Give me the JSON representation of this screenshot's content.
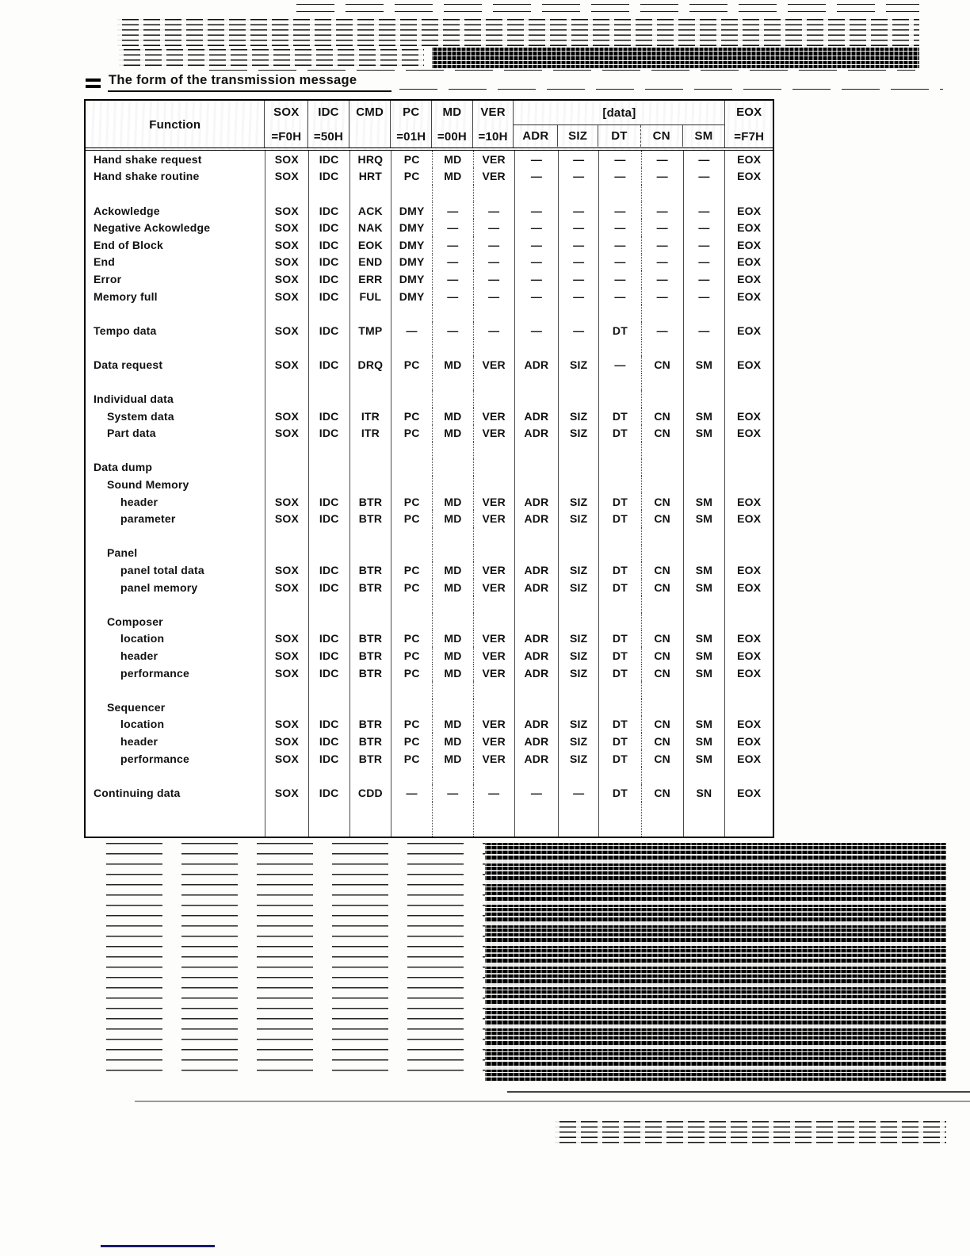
{
  "page": {
    "title": "The form of the transmission message",
    "icons": {
      "section_marker": "triple-bar"
    },
    "colors": {
      "text": "#111111",
      "table_border": "#000000",
      "navy_rule": "#1b1a6e"
    }
  },
  "table": {
    "header": {
      "function": "Function",
      "sox": {
        "line1": "SOX",
        "line2": "=F0H"
      },
      "idc": {
        "line1": "IDC",
        "line2": "=50H"
      },
      "cmd": {
        "line1": "CMD",
        "line2": ""
      },
      "pc": {
        "line1": "PC",
        "line2": "=01H"
      },
      "md": {
        "line1": "MD",
        "line2": "=00H"
      },
      "ver": {
        "line1": "VER",
        "line2": "=10H"
      },
      "data_group": {
        "label": "[data]",
        "columns": [
          "ADR",
          "SIZ",
          "DT",
          "CN",
          "SM"
        ]
      },
      "eox": {
        "line1": "EOX",
        "line2": "=F7H"
      }
    },
    "rows": [
      {
        "label": "Hand shake request",
        "indent": 0,
        "cells": [
          "SOX",
          "IDC",
          "HRQ",
          "PC",
          "MD",
          "VER",
          "—",
          "—",
          "—",
          "—",
          "—",
          "EOX"
        ]
      },
      {
        "label": "Hand shake routine",
        "indent": 0,
        "cells": [
          "SOX",
          "IDC",
          "HRT",
          "PC",
          "MD",
          "VER",
          "—",
          "—",
          "—",
          "—",
          "—",
          "EOX"
        ]
      },
      {
        "label": "",
        "indent": 0,
        "cells": [
          "",
          "",
          "",
          "",
          "",
          "",
          "",
          "",
          "",
          "",
          "",
          ""
        ]
      },
      {
        "label": "Ackowledge",
        "indent": 0,
        "cells": [
          "SOX",
          "IDC",
          "ACK",
          "DMY",
          "—",
          "—",
          "—",
          "—",
          "—",
          "—",
          "—",
          "EOX"
        ]
      },
      {
        "label": "Negative Ackowledge",
        "indent": 0,
        "cells": [
          "SOX",
          "IDC",
          "NAK",
          "DMY",
          "—",
          "—",
          "—",
          "—",
          "—",
          "—",
          "—",
          "EOX"
        ]
      },
      {
        "label": "End of Block",
        "indent": 0,
        "cells": [
          "SOX",
          "IDC",
          "EOK",
          "DMY",
          "—",
          "—",
          "—",
          "—",
          "—",
          "—",
          "—",
          "EOX"
        ]
      },
      {
        "label": "End",
        "indent": 0,
        "cells": [
          "SOX",
          "IDC",
          "END",
          "DMY",
          "—",
          "—",
          "—",
          "—",
          "—",
          "—",
          "—",
          "EOX"
        ]
      },
      {
        "label": "Error",
        "indent": 0,
        "cells": [
          "SOX",
          "IDC",
          "ERR",
          "DMY",
          "—",
          "—",
          "—",
          "—",
          "—",
          "—",
          "—",
          "EOX"
        ]
      },
      {
        "label": "Memory full",
        "indent": 0,
        "cells": [
          "SOX",
          "IDC",
          "FUL",
          "DMY",
          "—",
          "—",
          "—",
          "—",
          "—",
          "—",
          "—",
          "EOX"
        ]
      },
      {
        "label": "",
        "indent": 0,
        "cells": [
          "",
          "",
          "",
          "",
          "",
          "",
          "",
          "",
          "",
          "",
          "",
          ""
        ]
      },
      {
        "label": "Tempo data",
        "indent": 0,
        "cells": [
          "SOX",
          "IDC",
          "TMP",
          "—",
          "—",
          "—",
          "—",
          "—",
          "DT",
          "—",
          "—",
          "EOX"
        ]
      },
      {
        "label": "",
        "indent": 0,
        "cells": [
          "",
          "",
          "",
          "",
          "",
          "",
          "",
          "",
          "",
          "",
          "",
          ""
        ]
      },
      {
        "label": "Data request",
        "indent": 0,
        "cells": [
          "SOX",
          "IDC",
          "DRQ",
          "PC",
          "MD",
          "VER",
          "ADR",
          "SIZ",
          "—",
          "CN",
          "SM",
          "EOX"
        ]
      },
      {
        "label": "",
        "indent": 0,
        "cells": [
          "",
          "",
          "",
          "",
          "",
          "",
          "",
          "",
          "",
          "",
          "",
          ""
        ]
      },
      {
        "label": "Individual data",
        "indent": 0,
        "cells": [
          "",
          "",
          "",
          "",
          "",
          "",
          "",
          "",
          "",
          "",
          "",
          ""
        ]
      },
      {
        "label": "System data",
        "indent": 1,
        "cells": [
          "SOX",
          "IDC",
          "ITR",
          "PC",
          "MD",
          "VER",
          "ADR",
          "SIZ",
          "DT",
          "CN",
          "SM",
          "EOX"
        ]
      },
      {
        "label": "Part data",
        "indent": 1,
        "cells": [
          "SOX",
          "IDC",
          "ITR",
          "PC",
          "MD",
          "VER",
          "ADR",
          "SIZ",
          "DT",
          "CN",
          "SM",
          "EOX"
        ]
      },
      {
        "label": "",
        "indent": 0,
        "cells": [
          "",
          "",
          "",
          "",
          "",
          "",
          "",
          "",
          "",
          "",
          "",
          ""
        ]
      },
      {
        "label": "Data dump",
        "indent": 0,
        "cells": [
          "",
          "",
          "",
          "",
          "",
          "",
          "",
          "",
          "",
          "",
          "",
          ""
        ]
      },
      {
        "label": "Sound Memory",
        "indent": 1,
        "cells": [
          "",
          "",
          "",
          "",
          "",
          "",
          "",
          "",
          "",
          "",
          "",
          ""
        ]
      },
      {
        "label": "header",
        "indent": 2,
        "cells": [
          "SOX",
          "IDC",
          "BTR",
          "PC",
          "MD",
          "VER",
          "ADR",
          "SIZ",
          "DT",
          "CN",
          "SM",
          "EOX"
        ]
      },
      {
        "label": "parameter",
        "indent": 2,
        "cells": [
          "SOX",
          "IDC",
          "BTR",
          "PC",
          "MD",
          "VER",
          "ADR",
          "SIZ",
          "DT",
          "CN",
          "SM",
          "EOX"
        ]
      },
      {
        "label": "",
        "indent": 0,
        "cells": [
          "",
          "",
          "",
          "",
          "",
          "",
          "",
          "",
          "",
          "",
          "",
          ""
        ]
      },
      {
        "label": "Panel",
        "indent": 1,
        "cells": [
          "",
          "",
          "",
          "",
          "",
          "",
          "",
          "",
          "",
          "",
          "",
          ""
        ]
      },
      {
        "label": "panel total data",
        "indent": 2,
        "cells": [
          "SOX",
          "IDC",
          "BTR",
          "PC",
          "MD",
          "VER",
          "ADR",
          "SIZ",
          "DT",
          "CN",
          "SM",
          "EOX"
        ]
      },
      {
        "label": "panel memory",
        "indent": 2,
        "cells": [
          "SOX",
          "IDC",
          "BTR",
          "PC",
          "MD",
          "VER",
          "ADR",
          "SIZ",
          "DT",
          "CN",
          "SM",
          "EOX"
        ]
      },
      {
        "label": "",
        "indent": 0,
        "cells": [
          "",
          "",
          "",
          "",
          "",
          "",
          "",
          "",
          "",
          "",
          "",
          ""
        ]
      },
      {
        "label": "Composer",
        "indent": 1,
        "cells": [
          "",
          "",
          "",
          "",
          "",
          "",
          "",
          "",
          "",
          "",
          "",
          ""
        ]
      },
      {
        "label": "location",
        "indent": 2,
        "cells": [
          "SOX",
          "IDC",
          "BTR",
          "PC",
          "MD",
          "VER",
          "ADR",
          "SIZ",
          "DT",
          "CN",
          "SM",
          "EOX"
        ]
      },
      {
        "label": "header",
        "indent": 2,
        "cells": [
          "SOX",
          "IDC",
          "BTR",
          "PC",
          "MD",
          "VER",
          "ADR",
          "SIZ",
          "DT",
          "CN",
          "SM",
          "EOX"
        ]
      },
      {
        "label": "performance",
        "indent": 2,
        "cells": [
          "SOX",
          "IDC",
          "BTR",
          "PC",
          "MD",
          "VER",
          "ADR",
          "SIZ",
          "DT",
          "CN",
          "SM",
          "EOX"
        ]
      },
      {
        "label": "",
        "indent": 0,
        "cells": [
          "",
          "",
          "",
          "",
          "",
          "",
          "",
          "",
          "",
          "",
          "",
          ""
        ]
      },
      {
        "label": "Sequencer",
        "indent": 1,
        "cells": [
          "",
          "",
          "",
          "",
          "",
          "",
          "",
          "",
          "",
          "",
          "",
          ""
        ]
      },
      {
        "label": "location",
        "indent": 2,
        "cells": [
          "SOX",
          "IDC",
          "BTR",
          "PC",
          "MD",
          "VER",
          "ADR",
          "SIZ",
          "DT",
          "CN",
          "SM",
          "EOX"
        ]
      },
      {
        "label": "header",
        "indent": 2,
        "cells": [
          "SOX",
          "IDC",
          "BTR",
          "PC",
          "MD",
          "VER",
          "ADR",
          "SIZ",
          "DT",
          "CN",
          "SM",
          "EOX"
        ]
      },
      {
        "label": "performance",
        "indent": 2,
        "cells": [
          "SOX",
          "IDC",
          "BTR",
          "PC",
          "MD",
          "VER",
          "ADR",
          "SIZ",
          "DT",
          "CN",
          "SM",
          "EOX"
        ]
      },
      {
        "label": "",
        "indent": 0,
        "cells": [
          "",
          "",
          "",
          "",
          "",
          "",
          "",
          "",
          "",
          "",
          "",
          ""
        ]
      },
      {
        "label": "Continuing data",
        "indent": 0,
        "cells": [
          "SOX",
          "IDC",
          "CDD",
          "—",
          "—",
          "—",
          "—",
          "—",
          "DT",
          "CN",
          "SN",
          "EOX"
        ]
      }
    ]
  }
}
